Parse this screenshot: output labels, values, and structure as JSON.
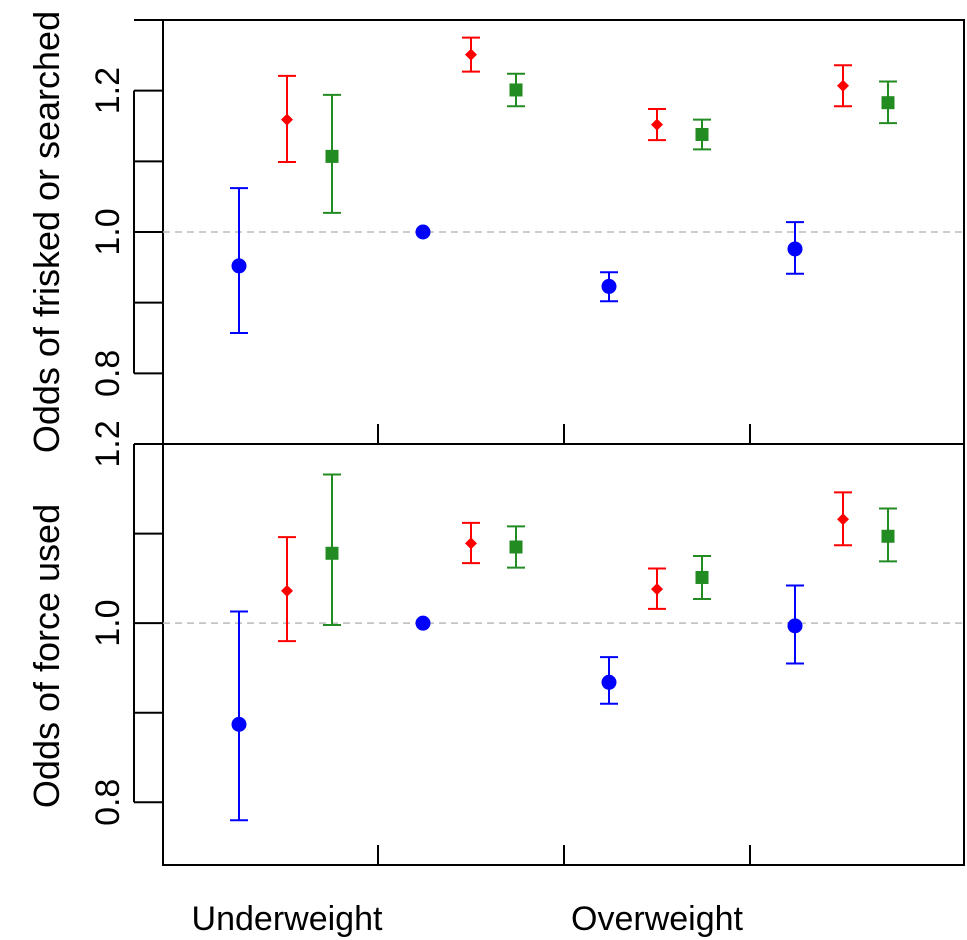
{
  "chart_data": [
    {
      "type": "scatter",
      "ylabel": "Odds of frisked or searched",
      "ylim": [
        0.7,
        1.3
      ],
      "yticks": [
        "0.8",
        "1.0",
        "1.2"
      ],
      "reference_line": 1.0,
      "groups": [
        {
          "points": [
            {
              "y": 0.952,
              "lo": 0.857,
              "hi": 1.062,
              "color": "#0000ff",
              "marker": "circle"
            },
            {
              "y": 1.159,
              "lo": 1.099,
              "hi": 1.221,
              "color": "#ff0000",
              "marker": "diamond"
            },
            {
              "y": 1.107,
              "lo": 1.027,
              "hi": 1.194,
              "color": "#228b22",
              "marker": "square"
            }
          ]
        },
        {
          "points": [
            {
              "y": 1.0,
              "color": "#0000ff",
              "marker": "circle"
            },
            {
              "y": 1.251,
              "lo": 1.227,
              "hi": 1.275,
              "color": "#ff0000",
              "marker": "diamond"
            },
            {
              "y": 1.201,
              "lo": 1.178,
              "hi": 1.224,
              "color": "#228b22",
              "marker": "square"
            }
          ]
        },
        {
          "points": [
            {
              "y": 0.923,
              "lo": 0.902,
              "hi": 0.943,
              "color": "#0000ff",
              "marker": "circle"
            },
            {
              "y": 1.152,
              "lo": 1.13,
              "hi": 1.174,
              "color": "#ff0000",
              "marker": "diamond"
            },
            {
              "y": 1.138,
              "lo": 1.117,
              "hi": 1.159,
              "color": "#228b22",
              "marker": "square"
            }
          ]
        },
        {
          "points": [
            {
              "y": 0.976,
              "lo": 0.941,
              "hi": 1.014,
              "color": "#0000ff",
              "marker": "circle"
            },
            {
              "y": 1.207,
              "lo": 1.178,
              "hi": 1.236,
              "color": "#ff0000",
              "marker": "diamond"
            },
            {
              "y": 1.183,
              "lo": 1.154,
              "hi": 1.213,
              "color": "#228b22",
              "marker": "square"
            }
          ]
        }
      ]
    },
    {
      "type": "scatter",
      "ylabel": "Odds of force used",
      "ylim": [
        0.73,
        1.2
      ],
      "yticks": [
        "0.8",
        "1.0",
        "1.2"
      ],
      "reference_line": 1.0,
      "groups": [
        {
          "points": [
            {
              "y": 0.887,
              "lo": 0.78,
              "hi": 1.013,
              "color": "#0000ff",
              "marker": "circle"
            },
            {
              "y": 1.036,
              "lo": 0.98,
              "hi": 1.096,
              "color": "#ff0000",
              "marker": "diamond"
            },
            {
              "y": 1.078,
              "lo": 0.998,
              "hi": 1.166,
              "color": "#228b22",
              "marker": "square"
            }
          ]
        },
        {
          "points": [
            {
              "y": 1.0,
              "color": "#0000ff",
              "marker": "circle"
            },
            {
              "y": 1.089,
              "lo": 1.067,
              "hi": 1.112,
              "color": "#ff0000",
              "marker": "diamond"
            },
            {
              "y": 1.085,
              "lo": 1.062,
              "hi": 1.108,
              "color": "#228b22",
              "marker": "square"
            }
          ]
        },
        {
          "points": [
            {
              "y": 0.934,
              "lo": 0.91,
              "hi": 0.962,
              "color": "#0000ff",
              "marker": "circle"
            },
            {
              "y": 1.038,
              "lo": 1.016,
              "hi": 1.061,
              "color": "#ff0000",
              "marker": "diamond"
            },
            {
              "y": 1.051,
              "lo": 1.027,
              "hi": 1.075,
              "color": "#228b22",
              "marker": "square"
            }
          ]
        },
        {
          "points": [
            {
              "y": 0.997,
              "lo": 0.955,
              "hi": 1.042,
              "color": "#0000ff",
              "marker": "circle"
            },
            {
              "y": 1.116,
              "lo": 1.087,
              "hi": 1.146,
              "color": "#ff0000",
              "marker": "diamond"
            },
            {
              "y": 1.097,
              "lo": 1.069,
              "hi": 1.128,
              "color": "#228b22",
              "marker": "square"
            }
          ]
        }
      ]
    }
  ],
  "x_axis": {
    "labels": [
      "Underweight",
      "Overweight"
    ]
  },
  "colors": {
    "axis": "#000000",
    "reference_line": "#bbbbbb"
  }
}
